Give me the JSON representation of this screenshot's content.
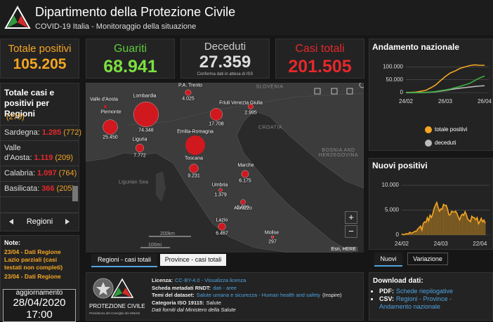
{
  "header": {
    "title": "Dipartimento della Protezione Civile",
    "subtitle": "COVID-19 Italia - Monitoraggio della situazione"
  },
  "stats": [
    {
      "label": "Totale positivi",
      "value": "105.205"
    },
    {
      "label": "Guariti",
      "value": "68.941"
    },
    {
      "label": "Deceduti",
      "value": "27.359",
      "note": "Conferma dati in attesa di ISS"
    },
    {
      "label": "Casi totali",
      "value": "201.505"
    }
  ],
  "regions_panel": {
    "title": "Totale casi e positivi per Regioni",
    "items": [
      {
        "positive": "(275)"
      },
      {
        "name": "Sardegna:",
        "total": "1.285",
        "positive": "(772)"
      },
      {
        "name": "Valle d'Aosta:",
        "total": "1.119",
        "positive": "(209)"
      },
      {
        "name": "Calabria:",
        "total": "1.097",
        "positive": "(764)"
      },
      {
        "name": "Basilicata:",
        "total": "366",
        "positive": "(205)"
      }
    ],
    "nav": "Regioni"
  },
  "notes": {
    "title": "Note:",
    "items": [
      "23/04 - Dati Regione Lazio parziali (casi testati non completi)",
      "23/04 - Dati Regione"
    ]
  },
  "update": {
    "label": "aggiornamento",
    "date": "28/04/2020",
    "time": "17:00"
  },
  "map": {
    "regions": [
      {
        "name": "Valle d'Aosta"
      },
      {
        "name": "Lombardia",
        "cases": 74348,
        "label": "74.348"
      },
      {
        "name": "Piemonte",
        "cases": 25450,
        "label": "25.450"
      },
      {
        "name": "P.A. Trento",
        "cases": 4025,
        "label": "4.025"
      },
      {
        "name": "Friuli Venezia Giulia",
        "cases": 2995,
        "label": "2.995"
      },
      {
        "cases": 17708,
        "label": "17.708"
      },
      {
        "name": "Liguria",
        "cases": 7772,
        "label": "7.772"
      },
      {
        "name": "Emilia-Romagna"
      },
      {
        "name": "Toscana",
        "cases": 9231,
        "label": "9.231"
      },
      {
        "name": "Marche",
        "cases": 6175,
        "label": "6.175"
      },
      {
        "name": "Umbria",
        "cases": 1379,
        "label": "1.379"
      },
      {
        "name": "Abruzzo",
        "cases": 2899,
        "label": "2.899"
      },
      {
        "name": "Lazio",
        "cases": 6467,
        "label": "6.467"
      },
      {
        "name": "Molise",
        "cases": 297,
        "label": "297"
      }
    ],
    "places": [
      "SLOVENIA",
      "CROATIA",
      "BOSNIA AND HERZEGOVINA",
      "Ligurian Sea"
    ],
    "scale": [
      "200km",
      "100mi"
    ],
    "attribution": "Esri, HERE",
    "zoom": [
      "+",
      "−"
    ],
    "tabs": [
      "Regioni - casi totali",
      "Province - casi totali"
    ]
  },
  "info": {
    "logo": "PROTEZIONE CIVILE",
    "logo_sub": "Presidenza del Consiglio dei Ministri",
    "lines": [
      {
        "key": "Licenza:",
        "value": "CC-BY-4.0 - Visualizza licenza",
        "link": true
      },
      {
        "key": "Scheda metadati RNDT:",
        "value": "dati - aree",
        "link": true
      },
      {
        "key": "Temi del dataset:",
        "value": "Salute umana e sicurezza - Human health and safety",
        "link": true,
        "suffix": "(Inspire)"
      },
      {
        "key": "Categoria ISO 19115:",
        "value": "Salute",
        "link": false
      },
      {
        "value": "Dati forniti dal Ministero della Salute",
        "link": false
      }
    ]
  },
  "chart_data": [
    {
      "type": "line",
      "title": "Andamento nazionale",
      "categories": [
        "24/02",
        null,
        null,
        null,
        null,
        null,
        null,
        null,
        "26/03",
        null,
        null,
        null,
        null,
        null,
        null,
        null,
        "26/04"
      ],
      "series": [
        {
          "name": "totale positivi",
          "color": "#f5a623",
          "values": [
            221,
            900,
            2000,
            5000,
            8500,
            18000,
            29000,
            46000,
            62000,
            76000,
            84000,
            94000,
            100000,
            105000,
            108000,
            106000,
            106000
          ]
        },
        {
          "name": "deceduti",
          "color": "#bbbbbb",
          "values": [
            7,
            21,
            79,
            230,
            630,
            1400,
            3000,
            5500,
            8200,
            11600,
            14700,
            17100,
            19400,
            21600,
            23700,
            25600,
            26600
          ]
        },
        {
          "color": "#3cb043",
          "values": [
            1,
            46,
            160,
            600,
            1000,
            2300,
            4000,
            7400,
            10000,
            14000,
            19000,
            24000,
            30000,
            36000,
            47000,
            57000,
            64000
          ]
        }
      ],
      "ylim": [
        0,
        120000
      ],
      "yticks": [
        0,
        {
          "value": 50000,
          "label": "50.000"
        },
        {
          "value": 100000,
          "label": "100.000"
        }
      ],
      "grid": true,
      "legend": true
    },
    {
      "type": "area",
      "title": "Nuovi positivi",
      "categories": [
        "24/02",
        null,
        null,
        null,
        null,
        null,
        null,
        null,
        null,
        null,
        null,
        null,
        null,
        null,
        null,
        null,
        null,
        null,
        null,
        null,
        null,
        null,
        null,
        null,
        null,
        null,
        null,
        null,
        null,
        "24/03",
        null,
        null,
        null,
        null,
        null,
        null,
        null,
        null,
        null,
        null,
        null,
        null,
        null,
        null,
        null,
        null,
        null,
        null,
        null,
        null,
        null,
        null,
        null,
        null,
        null,
        null,
        null,
        null,
        "22/04",
        null,
        null,
        null,
        null
      ],
      "color": "#f5a623",
      "values": [
        221,
        93,
        78,
        250,
        238,
        240,
        566,
        342,
        466,
        587,
        769,
        778,
        1247,
        1492,
        1797,
        977,
        2313,
        2651,
        2547,
        3497,
        2823,
        4000,
        3526,
        4207,
        5322,
        5986,
        6557,
        5560,
        4789,
        5249,
        5210,
        6153,
        5959,
        5974,
        5217,
        4050,
        4053,
        4782,
        4668,
        4585,
        4805,
        4316,
        3599,
        3039,
        3836,
        4204,
        3951,
        4694,
        4092,
        3153,
        2972,
        2667,
        3786,
        3493,
        3491,
        3047,
        3491,
        2256,
        2729,
        3370,
        2646,
        3021,
        2357
      ],
      "ylim": [
        0,
        11000
      ],
      "yticks": [
        0,
        {
          "value": 5000,
          "label": "5.000"
        },
        {
          "value": 10000,
          "label": "10.000"
        }
      ],
      "grid": true,
      "legend": false
    }
  ],
  "chart_tabs": [
    "Nuovi",
    "Variazione"
  ],
  "downloads": {
    "title": "Download dati:",
    "items": [
      {
        "key": "PDF:",
        "value": "Schede riepilogative"
      },
      {
        "key": "CSV:",
        "value": "Regioni - Province - Andamento nazionale"
      }
    ]
  }
}
